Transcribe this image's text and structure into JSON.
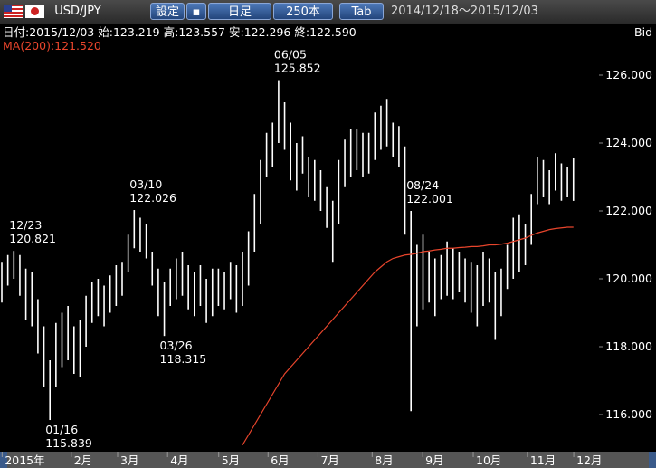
{
  "toolbar": {
    "pair": "USD/JPY",
    "settings": "設定",
    "timeframe": "日足",
    "count": "250本",
    "tab": "Tab",
    "range": "2014/12/18～2015/12/03"
  },
  "chart_data": {
    "type": "ohlc",
    "info": "日付:2015/12/03 始:123.219 高:123.557 安:122.296 終:122.590",
    "ma_label": "MA(200):121.520",
    "price_side": "Bid",
    "ylim": [
      114.96,
      127.52
    ],
    "yticks": [
      {
        "value": 116,
        "label": "116.000"
      },
      {
        "value": 118,
        "label": "118.000"
      },
      {
        "value": 120,
        "label": "120.000"
      },
      {
        "value": 122,
        "label": "122.000"
      },
      {
        "value": 124,
        "label": "124.000"
      },
      {
        "value": 126,
        "label": "126.000"
      }
    ],
    "xticks": [
      {
        "value": 0.5,
        "label": "2015年"
      },
      {
        "value": 12,
        "label": "2月"
      },
      {
        "value": 19.7,
        "label": "3月"
      },
      {
        "value": 28,
        "label": "4月"
      },
      {
        "value": 36.5,
        "label": "5月"
      },
      {
        "value": 44.7,
        "label": "6月"
      },
      {
        "value": 53,
        "label": "7月"
      },
      {
        "value": 62,
        "label": "8月"
      },
      {
        "value": 70.4,
        "label": "9月"
      },
      {
        "value": 78.8,
        "label": "10月"
      },
      {
        "value": 87.8,
        "label": "11月"
      },
      {
        "value": 95.5,
        "label": "12月"
      }
    ],
    "high": [
      120.5,
      120.7,
      120.821,
      120.7,
      120.3,
      120.2,
      119.4,
      118.6,
      117.6,
      118.7,
      119.0,
      119.2,
      118.6,
      118.8,
      119.5,
      119.9,
      120.0,
      119.8,
      120.1,
      120.4,
      120.5,
      121.3,
      122.026,
      121.8,
      121.6,
      120.8,
      120.3,
      119.9,
      120.3,
      120.6,
      120.8,
      120.4,
      120.2,
      120.4,
      120.0,
      120.3,
      120.3,
      120.2,
      120.5,
      120.4,
      120.8,
      121.4,
      122.5,
      123.5,
      124.3,
      124.6,
      125.852,
      125.2,
      124.6,
      124.0,
      124.2,
      123.6,
      123.5,
      123.2,
      122.7,
      122.3,
      123.5,
      124.1,
      124.4,
      124.4,
      124.3,
      124.3,
      124.9,
      125.1,
      125.3,
      124.6,
      124.5,
      123.9,
      122.001,
      121.0,
      121.3,
      120.8,
      120.6,
      120.7,
      121.1,
      120.9,
      120.8,
      120.6,
      120.5,
      120.4,
      120.8,
      120.6,
      120.2,
      120.3,
      121.0,
      121.8,
      121.9,
      121.6,
      122.5,
      123.6,
      123.5,
      123.2,
      123.7,
      123.4,
      123.3,
      123.557
    ],
    "low": [
      119.3,
      119.8,
      120.0,
      119.5,
      118.8,
      118.6,
      117.8,
      116.8,
      115.839,
      116.8,
      117.4,
      117.6,
      117.2,
      117.1,
      118.0,
      118.7,
      118.9,
      118.6,
      119.0,
      119.2,
      119.5,
      120.2,
      120.9,
      120.8,
      120.6,
      119.8,
      118.9,
      118.315,
      119.2,
      119.4,
      119.5,
      119.1,
      118.9,
      119.2,
      118.7,
      118.9,
      119.2,
      119.1,
      119.4,
      119.0,
      119.2,
      119.8,
      120.8,
      121.6,
      123.0,
      123.3,
      124.0,
      123.8,
      122.9,
      122.6,
      123.1,
      122.4,
      122.3,
      122.0,
      121.5,
      120.5,
      121.6,
      122.7,
      123.0,
      123.2,
      123.0,
      123.1,
      123.5,
      123.8,
      123.9,
      123.6,
      123.3,
      121.3,
      116.1,
      118.6,
      119.1,
      119.3,
      118.9,
      119.4,
      119.5,
      119.4,
      119.6,
      119.3,
      119.0,
      118.6,
      119.2,
      119.3,
      118.2,
      118.9,
      119.7,
      120.0,
      120.2,
      120.4,
      121.0,
      122.2,
      122.4,
      122.2,
      122.6,
      122.3,
      122.4,
      122.296
    ],
    "ma": [
      null,
      null,
      null,
      null,
      null,
      null,
      null,
      null,
      null,
      null,
      null,
      null,
      null,
      null,
      null,
      null,
      null,
      null,
      null,
      null,
      null,
      null,
      null,
      null,
      null,
      null,
      null,
      null,
      null,
      null,
      null,
      null,
      null,
      null,
      null,
      null,
      null,
      null,
      null,
      null,
      115.1,
      115.4,
      115.7,
      116.0,
      116.3,
      116.6,
      116.9,
      117.2,
      117.4,
      117.6,
      117.8,
      118.0,
      118.2,
      118.4,
      118.6,
      118.8,
      119.0,
      119.2,
      119.4,
      119.6,
      119.8,
      120.0,
      120.2,
      120.35,
      120.5,
      120.6,
      120.65,
      120.7,
      120.72,
      120.75,
      120.8,
      120.82,
      120.85,
      120.87,
      120.9,
      120.9,
      120.92,
      120.93,
      120.95,
      120.95,
      120.97,
      121.0,
      121.0,
      121.02,
      121.05,
      121.1,
      121.15,
      121.2,
      121.28,
      121.35,
      121.4,
      121.45,
      121.48,
      121.5,
      121.52,
      121.52
    ],
    "ma_color": "#e8452c",
    "bar_color": "#ffffff",
    "annotations": [
      {
        "date": "12/23",
        "value": 120.821
      },
      {
        "date": "01/16",
        "value": 115.839
      },
      {
        "date": "03/10",
        "value": 122.026
      },
      {
        "date": "03/26",
        "value": 118.315
      },
      {
        "date": "06/05",
        "value": 125.852
      },
      {
        "date": "08/24",
        "value": 122.001
      }
    ]
  }
}
